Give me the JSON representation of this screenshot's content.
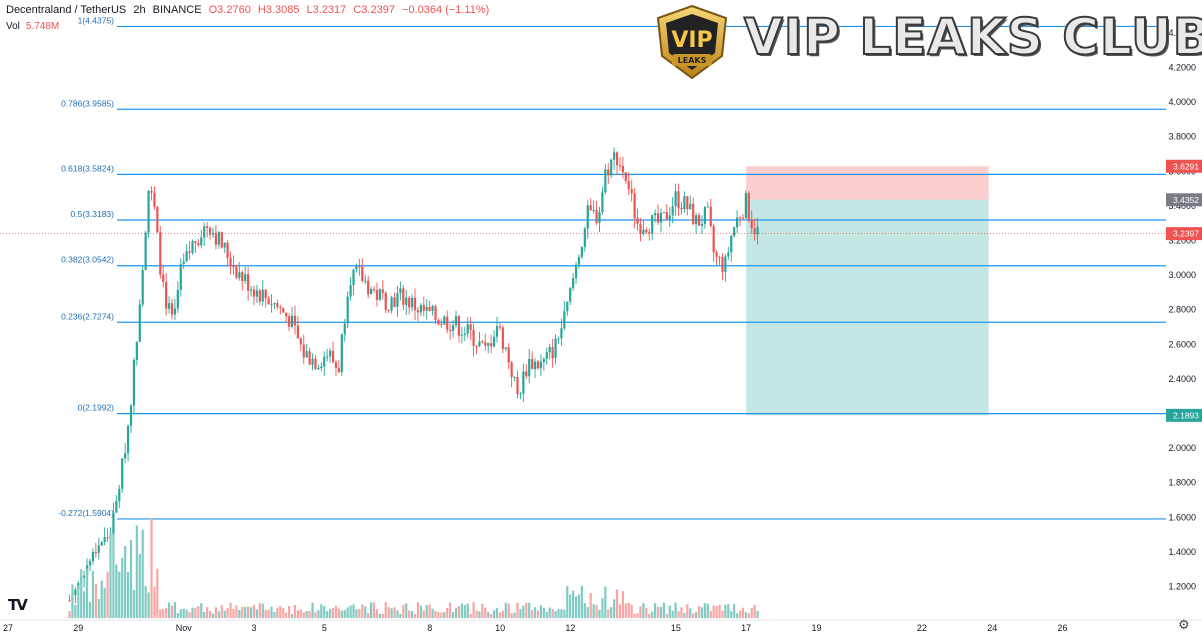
{
  "header": {
    "symbol": "Decentraland / TetherUS",
    "interval": "2h",
    "exchange": "BINANCE",
    "open": "O3.2760",
    "high": "H3.3085",
    "low": "L3.2317",
    "close": "C3.2397",
    "change": "−0.0364 (−1.11%)",
    "vol_label": "Vol",
    "vol_value": "5.748M"
  },
  "watermark": {
    "text": "VIP LEAKS CLUB",
    "badge_top": "VIP",
    "badge_bottom": "LEAKS"
  },
  "colors": {
    "up": "#26a69a",
    "down": "#ef5350",
    "fib": "#2196f3",
    "vol_up": "#80cbc4",
    "vol_down": "#f8a5a3",
    "profit_zone": "#b2dfdb",
    "loss_zone": "#fbcfd0"
  },
  "chart_data": {
    "type": "candlestick",
    "y_axis_ticks": [
      "1.2000",
      "1.4000",
      "1.6000",
      "1.8000",
      "2.0000",
      "2.2000",
      "2.4000",
      "2.6000",
      "2.8000",
      "3.0000",
      "3.2000",
      "3.4000",
      "3.6000",
      "3.8000",
      "4.0000",
      "4.2000",
      "4.4000"
    ],
    "y_axis_side": "right",
    "x_axis_ticks": [
      {
        "label": "27",
        "day": 27
      },
      {
        "label": "29",
        "day": 29
      },
      {
        "label": "Nov",
        "day": 32
      },
      {
        "label": "3",
        "day": 34
      },
      {
        "label": "5",
        "day": 36
      },
      {
        "label": "8",
        "day": 39
      },
      {
        "label": "10",
        "day": 41
      },
      {
        "label": "12",
        "day": 43
      },
      {
        "label": "15",
        "day": 46
      },
      {
        "label": "17",
        "day": 48
      },
      {
        "label": "19",
        "day": 50
      },
      {
        "label": "22",
        "day": 53
      },
      {
        "label": "24",
        "day": 55
      },
      {
        "label": "26",
        "day": 57
      }
    ],
    "fib_levels": [
      {
        "label": "1(4.4375)",
        "price": 4.4375
      },
      {
        "label": "0.786(3.9585)",
        "price": 3.9585
      },
      {
        "label": "0.618(3.5824)",
        "price": 3.5824
      },
      {
        "label": "0.5(3.3183)",
        "price": 3.3183
      },
      {
        "label": "0.382(3.0542)",
        "price": 3.0542
      },
      {
        "label": "0.236(2.7274)",
        "price": 2.7274
      },
      {
        "label": "0(2.1992)",
        "price": 2.1992
      },
      {
        "label": "-0.272(1.5904)",
        "price": 1.5904
      }
    ],
    "price_badges": [
      {
        "label": "3.6291",
        "price": 3.6291,
        "kind": "stop"
      },
      {
        "label": "3.4352",
        "price": 3.4352,
        "kind": "entry"
      },
      {
        "label": "3.2397",
        "price": 3.2397,
        "kind": "last"
      },
      {
        "label": "2.1893",
        "price": 2.1893,
        "kind": "target"
      }
    ],
    "position": {
      "entry": 3.4352,
      "stop": 3.6291,
      "target": 2.1893,
      "start_day": 48.0,
      "end_day": 54.9
    },
    "current_price": 3.2397,
    "path": [
      {
        "day": 28.75,
        "price": 1.12
      },
      {
        "day": 29.2,
        "price": 1.3
      },
      {
        "day": 29.6,
        "price": 1.45
      },
      {
        "day": 29.9,
        "price": 1.5
      },
      {
        "day": 30.1,
        "price": 1.7
      },
      {
        "day": 30.4,
        "price": 2.1
      },
      {
        "day": 30.6,
        "price": 2.5
      },
      {
        "day": 30.8,
        "price": 3.0
      },
      {
        "day": 31.0,
        "price": 3.5
      },
      {
        "day": 31.15,
        "price": 3.4
      },
      {
        "day": 31.3,
        "price": 3.1
      },
      {
        "day": 31.5,
        "price": 2.85
      },
      {
        "day": 31.7,
        "price": 2.7
      },
      {
        "day": 31.9,
        "price": 3.0
      },
      {
        "day": 32.3,
        "price": 3.2
      },
      {
        "day": 32.7,
        "price": 3.3
      },
      {
        "day": 33.0,
        "price": 3.2
      },
      {
        "day": 33.3,
        "price": 3.1
      },
      {
        "day": 33.6,
        "price": 3.0
      },
      {
        "day": 34.0,
        "price": 2.92
      },
      {
        "day": 34.5,
        "price": 2.85
      },
      {
        "day": 35.0,
        "price": 2.75
      },
      {
        "day": 35.4,
        "price": 2.55
      },
      {
        "day": 35.8,
        "price": 2.5
      },
      {
        "day": 36.1,
        "price": 2.55
      },
      {
        "day": 36.4,
        "price": 2.45
      },
      {
        "day": 36.7,
        "price": 3.0
      },
      {
        "day": 37.0,
        "price": 3.0
      },
      {
        "day": 37.4,
        "price": 2.9
      },
      {
        "day": 37.8,
        "price": 2.85
      },
      {
        "day": 38.2,
        "price": 2.88
      },
      {
        "day": 38.7,
        "price": 2.8
      },
      {
        "day": 39.2,
        "price": 2.75
      },
      {
        "day": 39.7,
        "price": 2.72
      },
      {
        "day": 40.2,
        "price": 2.65
      },
      {
        "day": 40.6,
        "price": 2.55
      },
      {
        "day": 40.9,
        "price": 2.72
      },
      {
        "day": 41.2,
        "price": 2.55
      },
      {
        "day": 41.5,
        "price": 2.3
      },
      {
        "day": 41.8,
        "price": 2.5
      },
      {
        "day": 42.2,
        "price": 2.48
      },
      {
        "day": 42.6,
        "price": 2.6
      },
      {
        "day": 42.9,
        "price": 2.8
      },
      {
        "day": 43.2,
        "price": 3.1
      },
      {
        "day": 43.5,
        "price": 3.35
      },
      {
        "day": 43.8,
        "price": 3.35
      },
      {
        "day": 44.0,
        "price": 3.6
      },
      {
        "day": 44.3,
        "price": 3.7
      },
      {
        "day": 44.6,
        "price": 3.55
      },
      {
        "day": 44.9,
        "price": 3.3
      },
      {
        "day": 45.2,
        "price": 3.3
      },
      {
        "day": 45.6,
        "price": 3.3
      },
      {
        "day": 46.0,
        "price": 3.45
      },
      {
        "day": 46.3,
        "price": 3.4
      },
      {
        "day": 46.6,
        "price": 3.3
      },
      {
        "day": 46.9,
        "price": 3.35
      },
      {
        "day": 47.1,
        "price": 3.1
      },
      {
        "day": 47.4,
        "price": 3.05
      },
      {
        "day": 47.6,
        "price": 3.25
      },
      {
        "day": 47.8,
        "price": 3.35
      },
      {
        "day": 48.0,
        "price": 3.42
      },
      {
        "day": 48.2,
        "price": 3.28
      },
      {
        "day": 48.4,
        "price": 3.24
      }
    ]
  }
}
